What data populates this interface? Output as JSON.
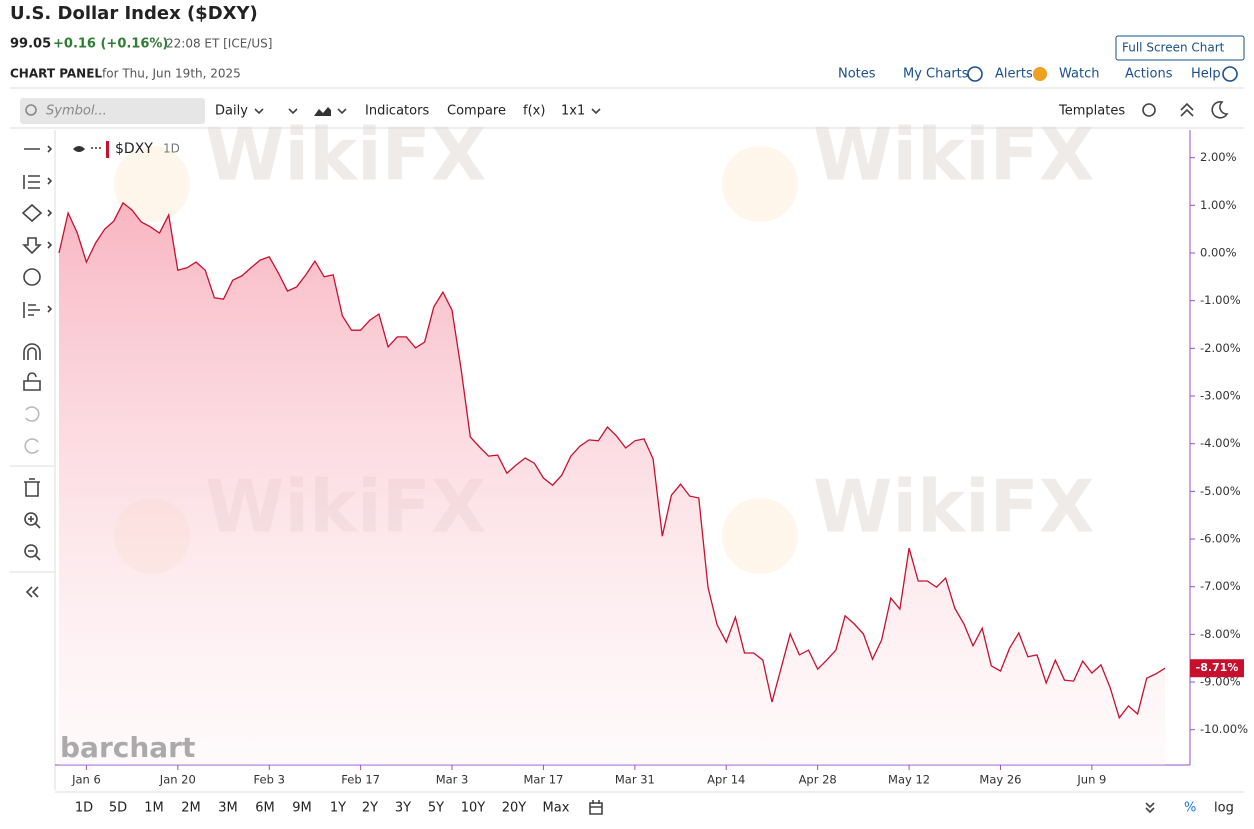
{
  "header": {
    "title": "U.S. Dollar Index ($DXY)",
    "price": "99.05",
    "change": "+0.16 (+0.16%)",
    "time_exchange": "22:08 ET [ICE/US]",
    "full_screen": "Full Screen Chart"
  },
  "panel": {
    "label": "CHART PANEL",
    "date": "for Thu, Jun 19th, 2025"
  },
  "nav": [
    "Notes",
    "My Charts",
    "Alerts",
    "Watch",
    "Actions",
    "Help"
  ],
  "toolbar": {
    "symbol_placeholder": "Symbol...",
    "interval": "Daily",
    "indicators": "Indicators",
    "compare": "Compare",
    "fx": "f(x)",
    "layout": "1x1",
    "templates": "Templates"
  },
  "watermark": "WikiFX",
  "logo": "barchart",
  "ranges": [
    "1D",
    "5D",
    "1M",
    "2M",
    "3M",
    "6M",
    "9M",
    "1Y",
    "2Y",
    "3Y",
    "5Y",
    "10Y",
    "20Y",
    "Max"
  ],
  "bottom": {
    "percent": "%",
    "log": "log"
  },
  "chart_data": {
    "type": "line",
    "legend": {
      "symbol": "$DXY",
      "interval": "1D"
    },
    "categories": [
      null,
      null,
      null,
      "Jan 6",
      null,
      null,
      null,
      null,
      null,
      null,
      null,
      null,
      null,
      "Jan 20",
      null,
      null,
      null,
      null,
      null,
      null,
      null,
      null,
      null,
      "Feb 3",
      null,
      null,
      null,
      null,
      null,
      null,
      null,
      null,
      null,
      "Feb 17",
      null,
      null,
      null,
      null,
      null,
      null,
      null,
      null,
      null,
      "Mar 3",
      null,
      null,
      null,
      null,
      null,
      null,
      null,
      null,
      null,
      "Mar 17",
      null,
      null,
      null,
      null,
      null,
      null,
      null,
      null,
      null,
      "Mar 31",
      null,
      null,
      null,
      null,
      null,
      null,
      null,
      null,
      null,
      "Apr 14",
      null,
      null,
      null,
      null,
      null,
      null,
      null,
      null,
      null,
      "Apr 28",
      null,
      null,
      null,
      null,
      null,
      null,
      null,
      null,
      null,
      "May 12",
      null,
      null,
      null,
      null,
      null,
      null,
      null,
      null,
      null,
      "May 26",
      null,
      null,
      null,
      null,
      null,
      null,
      null,
      null,
      null,
      "Jun 9",
      null,
      null,
      null,
      null,
      null,
      null,
      null,
      null
    ],
    "series": [
      {
        "name": "$DXY",
        "color": "#c8102e",
        "values": [
          0.0,
          0.84,
          0.42,
          -0.19,
          0.21,
          0.5,
          0.67,
          1.05,
          0.9,
          0.65,
          0.55,
          0.42,
          0.8,
          -0.36,
          -0.31,
          -0.19,
          -0.36,
          -0.94,
          -0.97,
          -0.57,
          -0.48,
          -0.31,
          -0.15,
          -0.08,
          -0.42,
          -0.8,
          -0.71,
          -0.46,
          -0.17,
          -0.5,
          -0.46,
          -1.32,
          -1.62,
          -1.62,
          -1.41,
          -1.28,
          -1.97,
          -1.76,
          -1.76,
          -1.99,
          -1.87,
          -1.13,
          -0.82,
          -1.2,
          -2.45,
          -3.86,
          -4.07,
          -4.26,
          -4.24,
          -4.62,
          -4.45,
          -4.3,
          -4.41,
          -4.72,
          -4.87,
          -4.66,
          -4.26,
          -4.05,
          -3.92,
          -3.94,
          -3.65,
          -3.84,
          -4.09,
          -3.94,
          -3.9,
          -4.32,
          -5.94,
          -5.08,
          -4.85,
          -5.1,
          -5.14,
          -7.01,
          -7.8,
          -8.16,
          -7.64,
          -8.39,
          -8.39,
          -8.54,
          -9.42,
          -8.71,
          -7.99,
          -8.43,
          -8.33,
          -8.73,
          -8.54,
          -8.33,
          -7.61,
          -7.78,
          -7.99,
          -8.52,
          -8.12,
          -7.24,
          -7.47,
          -6.19,
          -6.88,
          -6.88,
          -7.01,
          -6.82,
          -7.45,
          -7.78,
          -8.24,
          -7.87,
          -8.66,
          -8.77,
          -8.29,
          -7.97,
          -8.47,
          -8.43,
          -9.02,
          -8.54,
          -8.96,
          -8.98,
          -8.56,
          -8.81,
          -8.64,
          -9.12,
          -9.75,
          -9.5,
          -9.67,
          -8.92,
          -8.83,
          -8.71
        ],
        "last_label": "-8.71%"
      }
    ],
    "ylim": [
      -10.74,
      2.58
    ],
    "yticks": [
      {
        "value": 2,
        "label": "2.00%"
      },
      {
        "value": 1,
        "label": "1.00%"
      },
      {
        "value": 0,
        "label": "0.00%"
      },
      {
        "value": -1,
        "label": "-1.00%"
      },
      {
        "value": -2,
        "label": "-2.00%"
      },
      {
        "value": -3,
        "label": "-3.00%"
      },
      {
        "value": -4,
        "label": "-4.00%"
      },
      {
        "value": -5,
        "label": "-5.00%"
      },
      {
        "value": -6,
        "label": "-6.00%"
      },
      {
        "value": -7,
        "label": "-7.00%"
      },
      {
        "value": -8,
        "label": "-8.00%"
      },
      {
        "value": -9,
        "label": "-9.00%"
      },
      {
        "value": -10,
        "label": "-10.00%"
      }
    ],
    "area_fill": true
  }
}
